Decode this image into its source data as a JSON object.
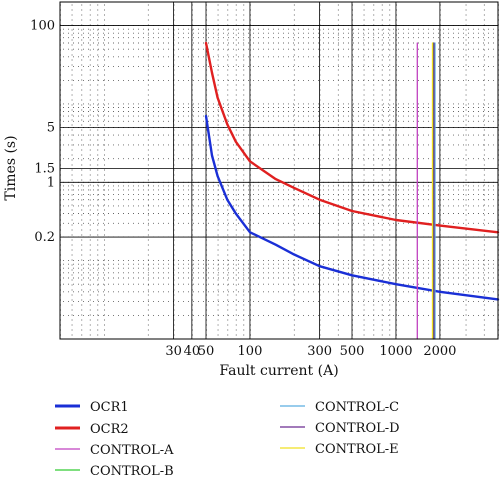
{
  "chart_data": {
    "type": "line",
    "xscale": "log",
    "yscale": "log",
    "xlim": [
      5,
      5000
    ],
    "ylim": [
      0.01,
      200
    ],
    "xlabel": "Fault current (A)",
    "ylabel": "Times (s)",
    "x_ticks": [
      30,
      40,
      50,
      100,
      300,
      500,
      1000,
      2000
    ],
    "y_ticks": [
      0.2,
      1,
      1.5,
      5,
      100
    ],
    "grid": "on",
    "legend_position": "bottom, two columns",
    "series": [
      {
        "name": "OCR1",
        "color": "#1a2fd6",
        "x": [
          50,
          55,
          60,
          70,
          80,
          100,
          150,
          200,
          300,
          500,
          1000,
          2000,
          5000
        ],
        "y": [
          7,
          2.2,
          1.2,
          0.6,
          0.4,
          0.23,
          0.16,
          0.12,
          0.085,
          0.065,
          0.05,
          0.04,
          0.032
        ]
      },
      {
        "name": "OCR2",
        "color": "#e02020",
        "x": [
          50,
          55,
          60,
          70,
          80,
          100,
          150,
          200,
          300,
          500,
          1000,
          2000,
          5000
        ],
        "y": [
          60,
          25,
          12,
          5.5,
          3.3,
          1.85,
          1.1,
          0.85,
          0.6,
          0.43,
          0.33,
          0.28,
          0.23
        ]
      },
      {
        "name": "CONTROL-A",
        "color": "#c040c0",
        "x": [
          1400,
          1400
        ],
        "y": [
          0.01,
          60
        ]
      },
      {
        "name": "CONTROL-B",
        "color": "#33cc33",
        "x": [
          1800,
          1800
        ],
        "y": [
          0.01,
          60
        ]
      },
      {
        "name": "CONTROL-C",
        "color": "#5aaee0",
        "x": [
          1850,
          1850
        ],
        "y": [
          0.01,
          60
        ]
      },
      {
        "name": "CONTROL-D",
        "color": "#6a2a90",
        "x": [
          1820,
          1820
        ],
        "y": [
          0.01,
          60
        ]
      },
      {
        "name": "CONTROL-E",
        "color": "#f0e020",
        "x": [
          1780,
          1780
        ],
        "y": [
          0.01,
          60
        ]
      }
    ]
  }
}
